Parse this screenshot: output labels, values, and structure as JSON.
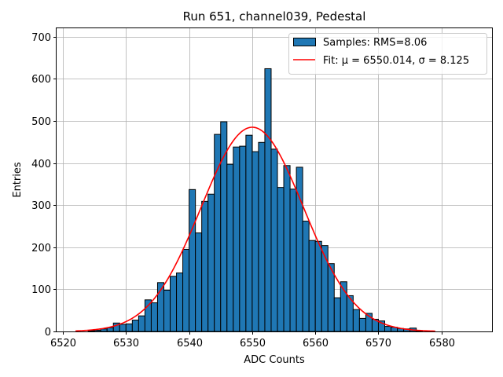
{
  "chart_data": {
    "type": "bar",
    "title": "Run 651, channel039, Pedestal",
    "xlabel": "ADC Counts",
    "ylabel": "Entries",
    "xlim": [
      6519,
      6588
    ],
    "ylim": [
      0,
      720
    ],
    "xticks": [
      6520,
      6530,
      6540,
      6550,
      6560,
      6570,
      6580
    ],
    "yticks": [
      0,
      100,
      200,
      300,
      400,
      500,
      600,
      700
    ],
    "grid": true,
    "legend_position": "upper right",
    "bar_color": "#1f77b4",
    "fit_color": "#ff0000",
    "histogram": {
      "name": "Samples: RMS=8.06",
      "bin_width": 1,
      "bin_starts": [
        6524,
        6525,
        6526,
        6527,
        6528,
        6529,
        6530,
        6531,
        6532,
        6533,
        6534,
        6535,
        6536,
        6537,
        6538,
        6539,
        6540,
        6541,
        6542,
        6543,
        6544,
        6545,
        6546,
        6547,
        6548,
        6549,
        6550,
        6551,
        6552,
        6553,
        6554,
        6555,
        6556,
        6557,
        6558,
        6559,
        6560,
        6561,
        6562,
        6563,
        6564,
        6565,
        6566,
        6567,
        6568,
        6569,
        6570,
        6571,
        6572,
        6573,
        6574,
        6575,
        6576
      ],
      "values": [
        2,
        3,
        6,
        9,
        20,
        17,
        18,
        27,
        37,
        75,
        68,
        116,
        98,
        131,
        139,
        195,
        337,
        234,
        309,
        326,
        468,
        498,
        397,
        438,
        440,
        466,
        427,
        449,
        624,
        433,
        342,
        394,
        338,
        390,
        262,
        216,
        214,
        204,
        161,
        80,
        118,
        85,
        52,
        31,
        43,
        29,
        25,
        12,
        10,
        7,
        6,
        8,
        2
      ]
    },
    "fit": {
      "name": "Fit: μ = 6550.014, σ = 8.125",
      "mu": 6550.014,
      "sigma": 8.125,
      "amplitude": 485,
      "x_range": [
        6522,
        6579
      ]
    }
  }
}
